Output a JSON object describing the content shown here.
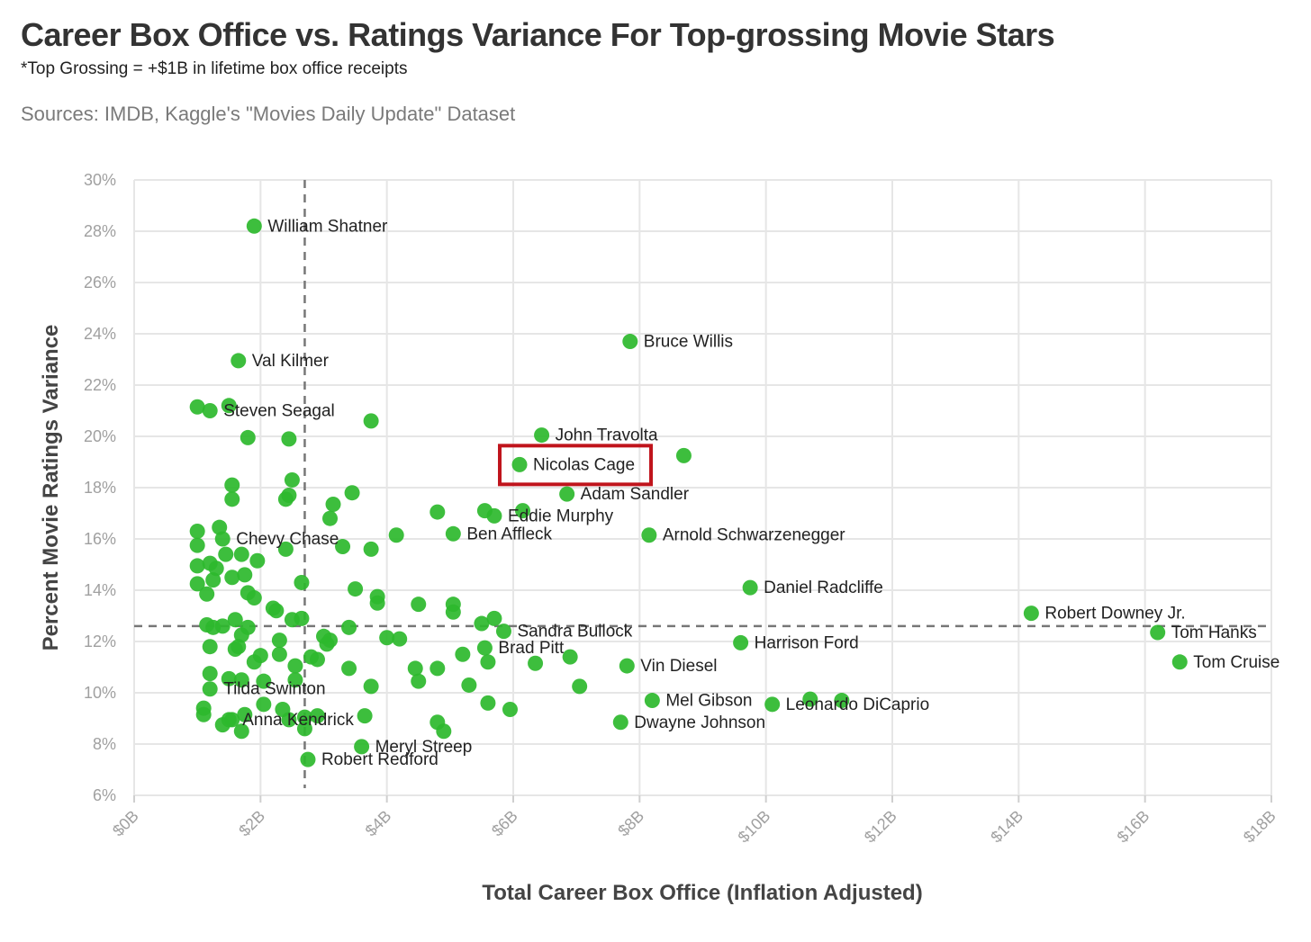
{
  "title": "Career Box Office vs. Ratings Variance For Top-grossing Movie Stars",
  "subtitle": "*Top Grossing = +$1B in lifetime box office receipts",
  "sources": "Sources: IMDB, Kaggle's \"Movies Daily Update\" Dataset",
  "colors": {
    "point": "#2db82d",
    "highlight_box": "#c0141c",
    "reference_line": "#777777",
    "grid": "#e6e6e6"
  },
  "chart_data": {
    "type": "scatter",
    "xlabel": "Total Career Box Office (Inflation Adjusted)",
    "ylabel": "Percent Movie Ratings Variance",
    "xlim": [
      0,
      18
    ],
    "ylim": [
      6,
      30
    ],
    "x_unit": "$B",
    "y_unit": "%",
    "x_ticks": [
      0,
      2,
      4,
      6,
      8,
      10,
      12,
      14,
      16,
      18
    ],
    "x_tick_labels": [
      "$0B",
      "$2B",
      "$4B",
      "$6B",
      "$8B",
      "$10B",
      "$12B",
      "$14B",
      "$16B",
      "$18B"
    ],
    "y_ticks": [
      6,
      8,
      10,
      12,
      14,
      16,
      18,
      20,
      22,
      24,
      26,
      28,
      30
    ],
    "y_tick_labels": [
      "6%",
      "8%",
      "10%",
      "12%",
      "14%",
      "16%",
      "18%",
      "20%",
      "22%",
      "24%",
      "26%",
      "28%",
      "30%"
    ],
    "grid": true,
    "reference_lines": {
      "x_median": 2.7,
      "y_median": 12.6
    },
    "highlight": "Nicolas Cage",
    "labeled_points": [
      {
        "name": "William Shatner",
        "x": 1.9,
        "y": 28.2
      },
      {
        "name": "Bruce Willis",
        "x": 7.85,
        "y": 23.7
      },
      {
        "name": "Val Kilmer",
        "x": 1.65,
        "y": 22.95
      },
      {
        "name": "Steven Seagal",
        "x": 1.2,
        "y": 21.0
      },
      {
        "name": "John Travolta",
        "x": 6.45,
        "y": 20.05
      },
      {
        "name": "Nicolas Cage",
        "x": 6.1,
        "y": 18.9
      },
      {
        "name": "Adam Sandler",
        "x": 6.85,
        "y": 17.75
      },
      {
        "name": "Eddie Murphy",
        "x": 5.7,
        "y": 16.9
      },
      {
        "name": "Chevy Chase",
        "x": 1.4,
        "y": 16.0
      },
      {
        "name": "Ben Affleck",
        "x": 5.05,
        "y": 16.2
      },
      {
        "name": "Arnold Schwarzenegger",
        "x": 8.15,
        "y": 16.15
      },
      {
        "name": "Daniel Radcliffe",
        "x": 9.75,
        "y": 14.1
      },
      {
        "name": "Robert Downey Jr.",
        "x": 14.2,
        "y": 13.1
      },
      {
        "name": "Tom Hanks",
        "x": 16.2,
        "y": 12.35
      },
      {
        "name": "Tom Cruise",
        "x": 16.55,
        "y": 11.2
      },
      {
        "name": "Sandra Bullock",
        "x": 5.85,
        "y": 12.4
      },
      {
        "name": "Brad Pitt",
        "x": 5.55,
        "y": 11.75
      },
      {
        "name": "Harrison Ford",
        "x": 9.6,
        "y": 11.95
      },
      {
        "name": "Vin Diesel",
        "x": 7.8,
        "y": 11.05
      },
      {
        "name": "Mel Gibson",
        "x": 8.2,
        "y": 9.7
      },
      {
        "name": "Leonardo DiCaprio",
        "x": 10.1,
        "y": 9.55
      },
      {
        "name": "Dwayne Johnson",
        "x": 7.7,
        "y": 8.85
      },
      {
        "name": "Tilda Swinton",
        "x": 1.2,
        "y": 10.15
      },
      {
        "name": "Anna Kendrick",
        "x": 1.5,
        "y": 8.95
      },
      {
        "name": "Meryl Streep",
        "x": 3.6,
        "y": 7.9
      },
      {
        "name": "Robert Redford",
        "x": 2.75,
        "y": 7.4
      }
    ],
    "other_points": [
      [
        1.0,
        21.15
      ],
      [
        1.5,
        21.2
      ],
      [
        1.8,
        19.95
      ],
      [
        2.45,
        19.9
      ],
      [
        3.75,
        20.6
      ],
      [
        8.7,
        19.25
      ],
      [
        2.5,
        18.3
      ],
      [
        1.55,
        18.1
      ],
      [
        1.55,
        17.55
      ],
      [
        2.4,
        17.55
      ],
      [
        2.45,
        17.7
      ],
      [
        3.45,
        17.8
      ],
      [
        3.15,
        17.35
      ],
      [
        3.1,
        16.8
      ],
      [
        4.8,
        17.05
      ],
      [
        5.55,
        17.1
      ],
      [
        6.15,
        17.1
      ],
      [
        1.35,
        16.45
      ],
      [
        1.0,
        16.3
      ],
      [
        1.0,
        15.75
      ],
      [
        1.45,
        15.4
      ],
      [
        1.7,
        15.4
      ],
      [
        1.95,
        15.15
      ],
      [
        2.4,
        15.6
      ],
      [
        3.3,
        15.7
      ],
      [
        3.75,
        15.6
      ],
      [
        4.15,
        16.15
      ],
      [
        1.0,
        14.95
      ],
      [
        1.2,
        15.05
      ],
      [
        1.3,
        14.85
      ],
      [
        1.55,
        14.5
      ],
      [
        1.75,
        14.6
      ],
      [
        1.25,
        14.4
      ],
      [
        1.0,
        14.25
      ],
      [
        1.15,
        13.85
      ],
      [
        1.8,
        13.9
      ],
      [
        1.9,
        13.7
      ],
      [
        2.2,
        13.3
      ],
      [
        2.25,
        13.2
      ],
      [
        2.65,
        14.3
      ],
      [
        3.5,
        14.05
      ],
      [
        3.85,
        13.75
      ],
      [
        3.85,
        13.5
      ],
      [
        4.5,
        13.45
      ],
      [
        5.05,
        13.45
      ],
      [
        5.05,
        13.15
      ],
      [
        1.15,
        12.65
      ],
      [
        1.25,
        12.55
      ],
      [
        1.4,
        12.6
      ],
      [
        1.6,
        12.85
      ],
      [
        1.8,
        12.55
      ],
      [
        2.5,
        12.85
      ],
      [
        2.65,
        12.9
      ],
      [
        3.4,
        12.55
      ],
      [
        5.5,
        12.7
      ],
      [
        5.7,
        12.9
      ],
      [
        1.2,
        11.8
      ],
      [
        1.6,
        11.7
      ],
      [
        1.7,
        12.25
      ],
      [
        1.65,
        11.8
      ],
      [
        2.0,
        11.45
      ],
      [
        2.3,
        12.05
      ],
      [
        1.9,
        11.2
      ],
      [
        2.3,
        11.5
      ],
      [
        2.8,
        11.4
      ],
      [
        2.9,
        11.3
      ],
      [
        3.0,
        12.2
      ],
      [
        3.05,
        11.9
      ],
      [
        3.1,
        12.05
      ],
      [
        4.0,
        12.15
      ],
      [
        4.2,
        12.1
      ],
      [
        5.2,
        11.5
      ],
      [
        5.6,
        11.2
      ],
      [
        6.35,
        11.15
      ],
      [
        6.9,
        11.4
      ],
      [
        1.2,
        10.75
      ],
      [
        1.5,
        10.55
      ],
      [
        1.7,
        10.5
      ],
      [
        2.05,
        10.45
      ],
      [
        2.55,
        10.5
      ],
      [
        2.55,
        11.05
      ],
      [
        3.4,
        10.95
      ],
      [
        3.75,
        10.25
      ],
      [
        4.45,
        10.95
      ],
      [
        4.5,
        10.45
      ],
      [
        4.8,
        10.95
      ],
      [
        5.3,
        10.3
      ],
      [
        7.05,
        10.25
      ],
      [
        1.1,
        9.4
      ],
      [
        1.1,
        9.15
      ],
      [
        1.75,
        9.15
      ],
      [
        2.05,
        9.55
      ],
      [
        2.35,
        9.35
      ],
      [
        2.7,
        9.05
      ],
      [
        2.9,
        9.1
      ],
      [
        3.65,
        9.1
      ],
      [
        5.6,
        9.6
      ],
      [
        5.95,
        9.35
      ],
      [
        10.7,
        9.75
      ],
      [
        11.2,
        9.7
      ],
      [
        1.4,
        8.75
      ],
      [
        1.55,
        8.95
      ],
      [
        1.7,
        8.5
      ],
      [
        2.45,
        8.95
      ],
      [
        2.7,
        8.6
      ],
      [
        4.8,
        8.85
      ],
      [
        4.9,
        8.5
      ]
    ]
  }
}
